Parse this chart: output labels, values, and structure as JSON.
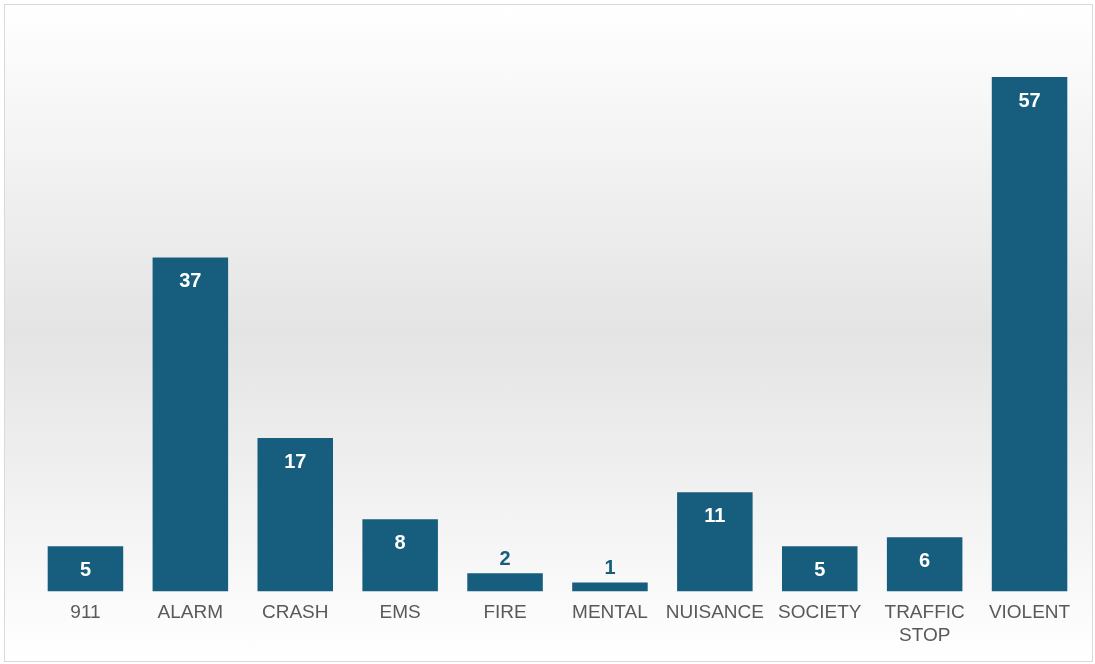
{
  "chart_data": {
    "type": "bar",
    "categories": [
      "911",
      "ALARM",
      "CRASH",
      "EMS",
      "FIRE",
      "MENTAL",
      "NUISANCE",
      "SOCIETY",
      "TRAFFIC STOP",
      "VIOLENT"
    ],
    "values": [
      5,
      37,
      17,
      8,
      2,
      1,
      11,
      5,
      6,
      57
    ],
    "color": "#175e7e",
    "data_labels": true,
    "grid": false,
    "legend": false
  }
}
